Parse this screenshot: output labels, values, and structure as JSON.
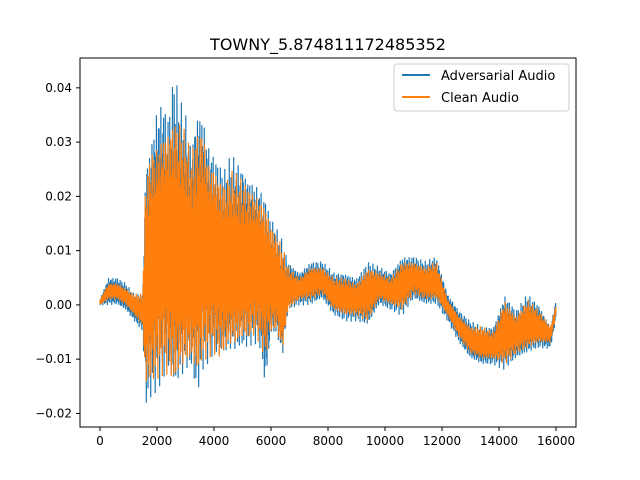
{
  "chart_data": {
    "type": "line",
    "title": "TOWNY_5.874811172485352",
    "xlabel": "",
    "ylabel": "",
    "xlim": [
      -700,
      16700
    ],
    "ylim": [
      -0.0225,
      0.0455
    ],
    "xticks": [
      0,
      2000,
      4000,
      6000,
      8000,
      10000,
      12000,
      14000,
      16000
    ],
    "xtick_labels": [
      "0",
      "2000",
      "4000",
      "6000",
      "8000",
      "10000",
      "12000",
      "14000",
      "16000"
    ],
    "yticks": [
      -0.02,
      -0.01,
      0.0,
      0.01,
      0.02,
      0.03,
      0.04
    ],
    "ytick_labels": [
      "−0.02",
      "−0.01",
      "0.00",
      "0.01",
      "0.02",
      "0.03",
      "0.04"
    ],
    "grid": false,
    "legend_position": "top-right",
    "series": [
      {
        "name": "Adversarial Audio",
        "color": "#1f77b4",
        "x": [
          0,
          300,
          600,
          900,
          1200,
          1500,
          1600,
          1800,
          2000,
          2200,
          2400,
          2600,
          2800,
          3000,
          3200,
          3400,
          3600,
          3800,
          4000,
          4200,
          4400,
          4600,
          4800,
          5000,
          5200,
          5400,
          5600,
          5800,
          6000,
          6200,
          6400,
          6600,
          7000,
          7400,
          7800,
          8200,
          8600,
          9000,
          9400,
          9800,
          10200,
          10600,
          11000,
          11400,
          11800,
          12200,
          12600,
          13000,
          13400,
          13800,
          14200,
          14600,
          15000,
          15400,
          15800,
          16000
        ],
        "y_upper": [
          0.001,
          0.005,
          0.005,
          0.004,
          0.002,
          0.002,
          0.027,
          0.031,
          0.037,
          0.038,
          0.035,
          0.043,
          0.038,
          0.036,
          0.03,
          0.037,
          0.036,
          0.03,
          0.028,
          0.026,
          0.025,
          0.028,
          0.027,
          0.026,
          0.024,
          0.023,
          0.022,
          0.02,
          0.016,
          0.014,
          0.012,
          0.008,
          0.006,
          0.008,
          0.008,
          0.006,
          0.006,
          0.005,
          0.008,
          0.007,
          0.006,
          0.009,
          0.009,
          0.008,
          0.009,
          0.002,
          -0.001,
          -0.003,
          -0.004,
          -0.004,
          0.002,
          -0.001,
          0.002,
          0.0,
          -0.004,
          0.001
        ],
        "y_lower": [
          0.0,
          0.0,
          0.0,
          -0.001,
          -0.003,
          -0.005,
          -0.019,
          -0.017,
          -0.016,
          -0.015,
          -0.014,
          -0.017,
          -0.015,
          -0.013,
          -0.012,
          -0.017,
          -0.012,
          -0.011,
          -0.01,
          -0.011,
          -0.01,
          -0.009,
          -0.009,
          -0.008,
          -0.008,
          -0.007,
          -0.008,
          -0.016,
          -0.006,
          -0.006,
          -0.01,
          -0.001,
          0.0,
          0.0,
          0.001,
          -0.002,
          -0.003,
          -0.003,
          -0.004,
          0.0,
          -0.001,
          -0.002,
          0.001,
          0.0,
          0.0,
          -0.003,
          -0.007,
          -0.01,
          -0.011,
          -0.011,
          -0.012,
          -0.01,
          -0.009,
          -0.008,
          -0.008,
          -0.003
        ]
      },
      {
        "name": "Clean Audio",
        "color": "#ff7f0e",
        "x": [
          0,
          300,
          600,
          900,
          1200,
          1500,
          1600,
          1800,
          2000,
          2200,
          2400,
          2600,
          2800,
          3000,
          3200,
          3400,
          3600,
          3800,
          4000,
          4200,
          4400,
          4600,
          4800,
          5000,
          5200,
          5400,
          5600,
          5800,
          6000,
          6200,
          6400,
          6600,
          7000,
          7400,
          7800,
          8200,
          8600,
          9000,
          9400,
          9800,
          10200,
          10600,
          11000,
          11400,
          11800,
          12200,
          12600,
          13000,
          13400,
          13800,
          14200,
          14600,
          15000,
          15400,
          15800,
          16000
        ],
        "y_upper": [
          0.001,
          0.004,
          0.004,
          0.003,
          0.002,
          0.002,
          0.024,
          0.029,
          0.03,
          0.032,
          0.033,
          0.035,
          0.034,
          0.032,
          0.028,
          0.032,
          0.033,
          0.027,
          0.026,
          0.024,
          0.023,
          0.025,
          0.024,
          0.023,
          0.022,
          0.021,
          0.02,
          0.019,
          0.015,
          0.013,
          0.011,
          0.007,
          0.005,
          0.007,
          0.007,
          0.005,
          0.005,
          0.004,
          0.007,
          0.006,
          0.005,
          0.008,
          0.008,
          0.007,
          0.008,
          0.001,
          -0.002,
          -0.004,
          -0.004,
          -0.005,
          0.001,
          -0.002,
          0.001,
          -0.001,
          -0.004,
          0.0
        ],
        "y_lower": [
          0.0,
          0.001,
          0.001,
          0.0,
          -0.002,
          -0.004,
          -0.016,
          -0.015,
          -0.014,
          -0.013,
          -0.013,
          -0.015,
          -0.013,
          -0.012,
          -0.011,
          -0.014,
          -0.011,
          -0.01,
          -0.009,
          -0.01,
          -0.009,
          -0.008,
          -0.008,
          -0.007,
          -0.007,
          -0.006,
          -0.007,
          -0.01,
          -0.005,
          -0.005,
          -0.009,
          -0.001,
          0.001,
          0.001,
          0.002,
          -0.001,
          -0.002,
          -0.002,
          -0.003,
          0.001,
          0.0,
          -0.001,
          0.002,
          0.001,
          0.001,
          -0.002,
          -0.006,
          -0.009,
          -0.01,
          -0.01,
          -0.011,
          -0.009,
          -0.008,
          -0.007,
          -0.007,
          -0.002
        ]
      }
    ]
  }
}
